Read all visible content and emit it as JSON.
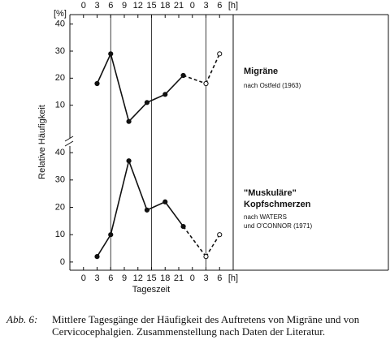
{
  "chart_data": [
    {
      "type": "line",
      "yunit": "[%]",
      "ylabel": "Relative Häufigkeit",
      "xlabel": "Tageszeit",
      "xunit": "[h]",
      "xlim": [
        -3,
        33
      ],
      "xticks": [
        0,
        3,
        6,
        9,
        12,
        15,
        18,
        21,
        {
          "value": 24,
          "label": "0"
        },
        {
          "value": 27,
          "label": "3"
        },
        {
          "value": 30,
          "label": "6"
        }
      ],
      "reference_lines": [
        6,
        15,
        27
      ],
      "ylim": [
        -3,
        43.5
      ],
      "yticks": [
        10,
        20,
        30,
        40
      ],
      "color": "#111111",
      "series": [
        {
          "x": [
            3,
            6,
            10,
            14,
            18,
            22
          ],
          "values": [
            18,
            29,
            4,
            11,
            14,
            21
          ],
          "style": "solid",
          "marker": "filled"
        },
        {
          "x": [
            27,
            30
          ],
          "values": [
            18,
            29
          ],
          "style": "dashed",
          "marker": "open"
        }
      ],
      "annotation": {
        "title": [
          "Migräne"
        ],
        "source": [
          "nach Ostfeld (1963)"
        ]
      }
    },
    {
      "type": "line",
      "ylim": [
        -3,
        43
      ],
      "yticks": [
        0,
        10,
        20,
        30,
        40
      ],
      "color": "#111111",
      "series": [
        {
          "x": [
            3,
            6,
            10,
            14,
            18,
            22
          ],
          "values": [
            2,
            10,
            37,
            19,
            22,
            13
          ],
          "style": "solid",
          "marker": "filled"
        },
        {
          "x": [
            27,
            30
          ],
          "values": [
            2,
            10
          ],
          "style": "dashed",
          "marker": "open"
        }
      ],
      "annotation": {
        "title": [
          "\"Muskuläre\"",
          "Kopfschmerzen"
        ],
        "source": [
          "nach WATERS",
          "und O'CONNOR (1971)"
        ]
      }
    }
  ],
  "caption": {
    "label": "Abb. 6:",
    "lines": [
      "Mittlere Tagesgänge der Häufigkeit des Auftretens von Migräne und von",
      "Cervicocephalgien. Zusammenstellung nach Daten der Literatur."
    ]
  }
}
